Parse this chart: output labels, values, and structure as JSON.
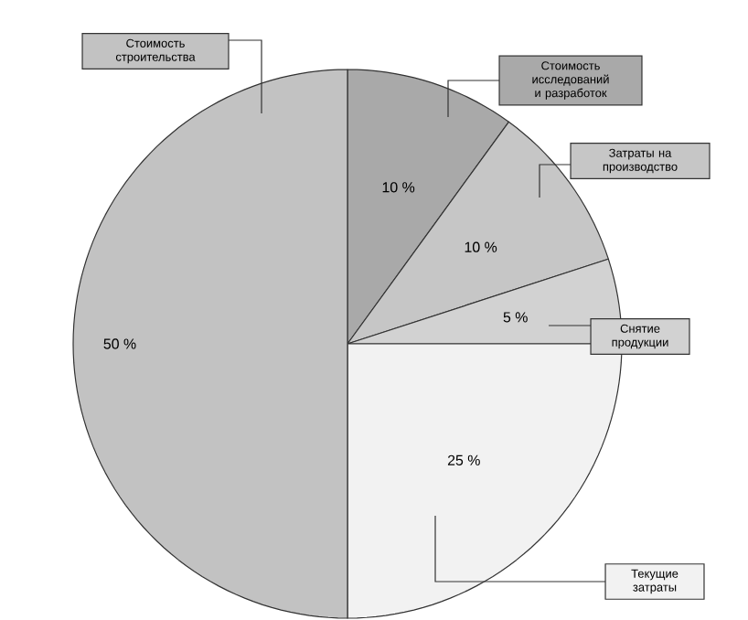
{
  "chart_data": {
    "type": "pie",
    "categories": [
      "Стоимость исследований и разработок",
      "Затраты на производство",
      "Снятие продукции",
      "Текущие затраты",
      "Стоимость строительства"
    ],
    "values": [
      10,
      10,
      5,
      25,
      50
    ],
    "colors": [
      "#a9a9a9",
      "#c6c6c6",
      "#d2d2d2",
      "#f2f2f2",
      "#c2c2c2"
    ],
    "value_labels": [
      "10 %",
      "10 %",
      "5 %",
      "25 %",
      "50 %"
    ]
  }
}
